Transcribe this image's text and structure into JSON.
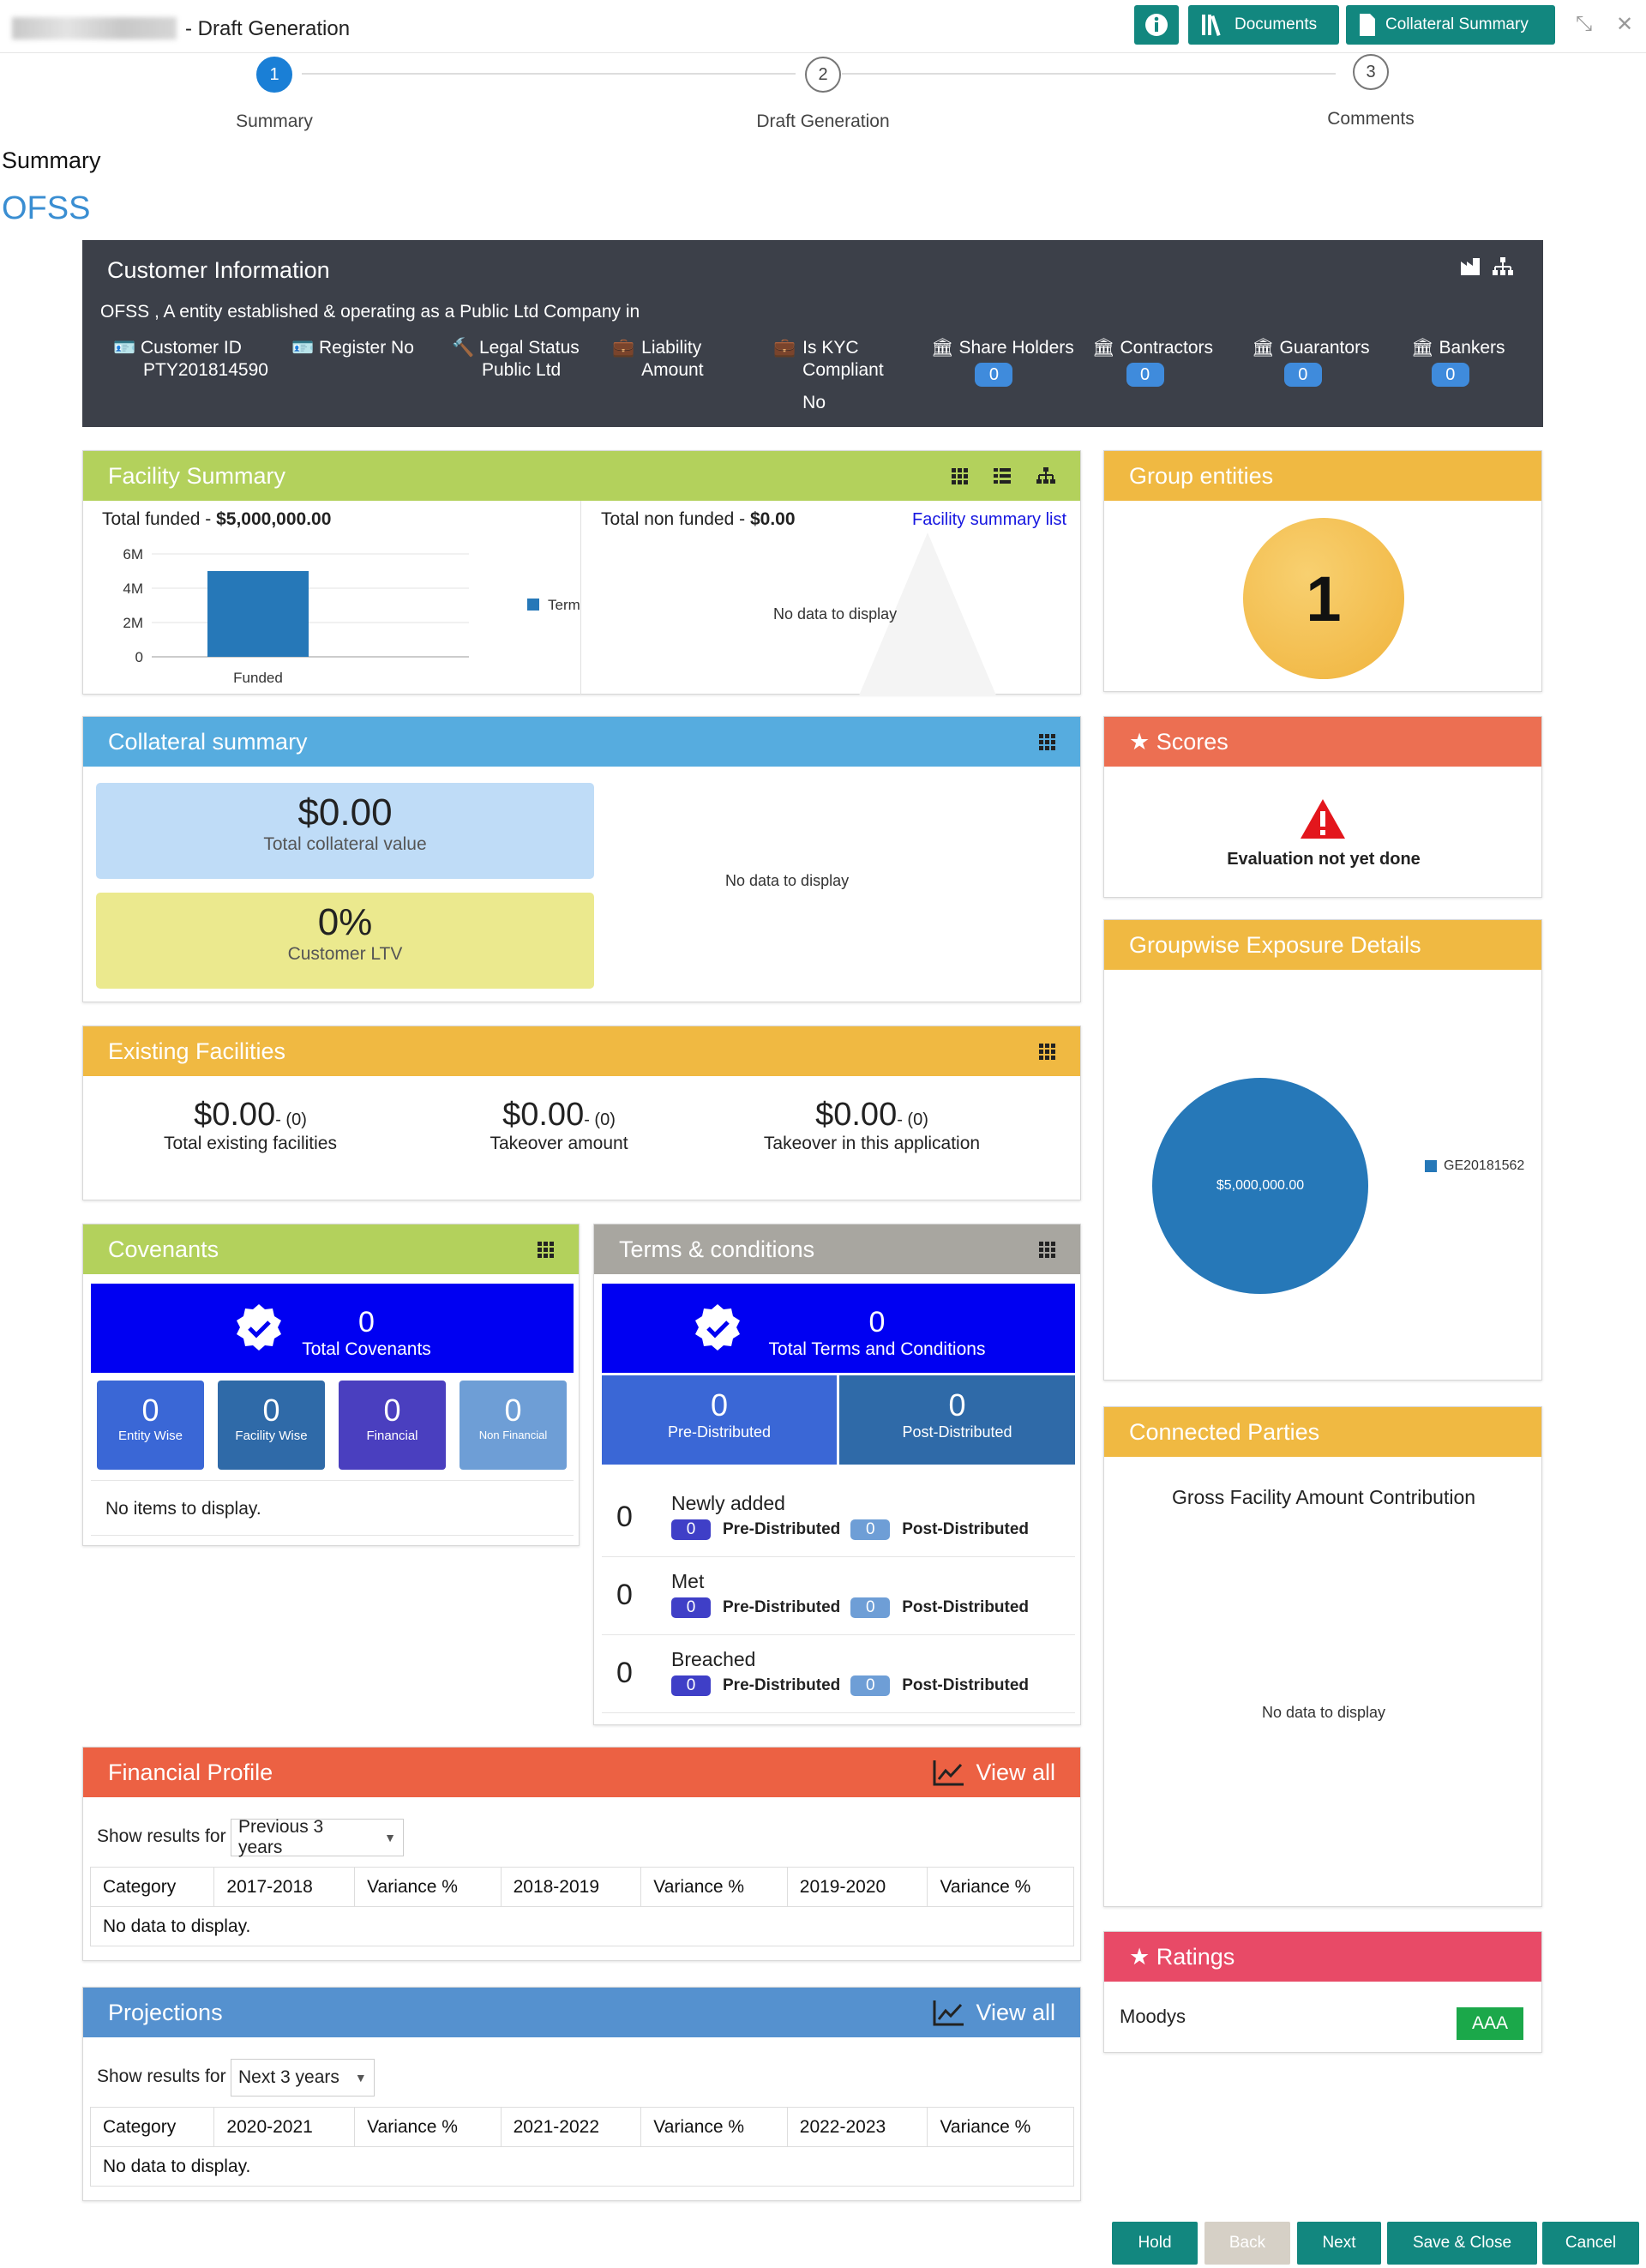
{
  "header": {
    "title": " - Draft Generation",
    "buttons": {
      "documents": "Documents",
      "collateral": "Collateral Summary"
    }
  },
  "steps": [
    {
      "num": "1",
      "label": "Summary"
    },
    {
      "num": "2",
      "label": "Draft Generation"
    },
    {
      "num": "3",
      "label": "Comments"
    }
  ],
  "page": {
    "section": "Summary",
    "org": "OFSS"
  },
  "customer": {
    "title": "Customer Information",
    "desc": "OFSS , A entity established & operating as a Public Ltd Company in",
    "customer_id_label": "Customer ID",
    "customer_id": "PTY201814590",
    "register_label": "Register No",
    "legal_label": "Legal Status",
    "legal_value": "Public Ltd",
    "liability_label": "Liability\nAmount",
    "kyc_label": "Is KYC\nCompliant",
    "kyc_value": "No",
    "share_label": "Share Holders",
    "share_count": "0",
    "contractors_label": "Contractors",
    "contractors_count": "0",
    "guarantors_label": "Guarantors",
    "guarantors_count": "0",
    "bankers_label": "Bankers",
    "bankers_count": "0"
  },
  "facility": {
    "title": "Facility Summary",
    "funded_label": "Total funded - ",
    "funded_value": "$5,000,000.00",
    "nonfunded_label": "Total non funded - ",
    "nonfunded_value": "$0.00",
    "list_link": "Facility summary list",
    "no_data": "No data to display"
  },
  "chart_data": {
    "type": "bar",
    "categories": [
      "Funded"
    ],
    "series": [
      {
        "name": "Term Loan",
        "values": [
          5000000
        ]
      }
    ],
    "yticks": [
      "6M",
      "4M",
      "2M",
      "0"
    ],
    "ylim": [
      0,
      6000000
    ],
    "legend": "right"
  },
  "group": {
    "title": "Group entities",
    "count": "1"
  },
  "collateral": {
    "title": "Collateral summary",
    "total_value": "$0.00",
    "total_label": "Total collateral value",
    "ltv": "0%",
    "ltv_label": "Customer LTV",
    "no_data": "No data to display"
  },
  "scores": {
    "title": "★ Scores",
    "message": "Evaluation not yet done"
  },
  "existing": {
    "title": "Existing Facilities",
    "items": [
      {
        "value": "$0.00",
        "count": "- (0)",
        "label": "Total existing facilities"
      },
      {
        "value": "$0.00",
        "count": "- (0)",
        "label": "Takeover amount"
      },
      {
        "value": "$0.00",
        "count": "- (0)",
        "label": "Takeover in this application"
      }
    ]
  },
  "groupwise": {
    "title": "Groupwise Exposure Details",
    "pie_label": "$5,000,000.00",
    "legend": "GE20181562"
  },
  "covenants": {
    "title": "Covenants",
    "total": "0",
    "total_label": "Total Covenants",
    "tiles": [
      {
        "v": "0",
        "l": "Entity Wise"
      },
      {
        "v": "0",
        "l": "Facility Wise"
      },
      {
        "v": "0",
        "l": "Financial"
      },
      {
        "v": "0",
        "l": "Non Financial"
      }
    ],
    "empty": "No items to display."
  },
  "terms": {
    "title": "Terms & conditions",
    "total": "0",
    "total_label": "Total Terms and Conditions",
    "pre": "0",
    "pre_label": "Pre-Distributed",
    "post": "0",
    "post_label": "Post-Distributed",
    "rows": [
      {
        "n": "0",
        "name": "Newly added",
        "pre": "0",
        "post": "0"
      },
      {
        "n": "0",
        "name": "Met",
        "pre": "0",
        "post": "0"
      },
      {
        "n": "0",
        "name": "Breached",
        "pre": "0",
        "post": "0"
      }
    ],
    "pre_text": "Pre-Distributed",
    "post_text": "Post-Distributed"
  },
  "connected": {
    "title": "Connected Parties",
    "subtitle": "Gross Facility Amount Contribution",
    "no_data": "No data to display"
  },
  "ratings": {
    "title": "★ Ratings",
    "agency": "Moodys",
    "rating": "AAA"
  },
  "financial": {
    "title": "Financial Profile",
    "view_all": "View all",
    "show_label": "Show results for",
    "select": "Previous 3 years",
    "cols": [
      "Category",
      "2017-2018",
      "Variance %",
      "2018-2019",
      "Variance %",
      "2019-2020",
      "Variance %"
    ],
    "empty": "No data to display."
  },
  "projections": {
    "title": "Projections",
    "view_all": "View all",
    "show_label": "Show results for",
    "select": "Next 3 years",
    "cols": [
      "Category",
      "2020-2021",
      "Variance %",
      "2021-2022",
      "Variance %",
      "2022-2023",
      "Variance %"
    ],
    "empty": "No data to display."
  },
  "footer": {
    "hold": "Hold",
    "back": "Back",
    "next": "Next",
    "save": "Save & Close",
    "cancel": "Cancel"
  },
  "colors": {
    "teal": "#12877f",
    "green": "#b3d15c",
    "blue": "#56acdf",
    "orange": "#f0b942",
    "red": "#ec6f52",
    "gray": "#a8a6a0",
    "pink": "#e84a67",
    "slate": "#5591cf"
  }
}
